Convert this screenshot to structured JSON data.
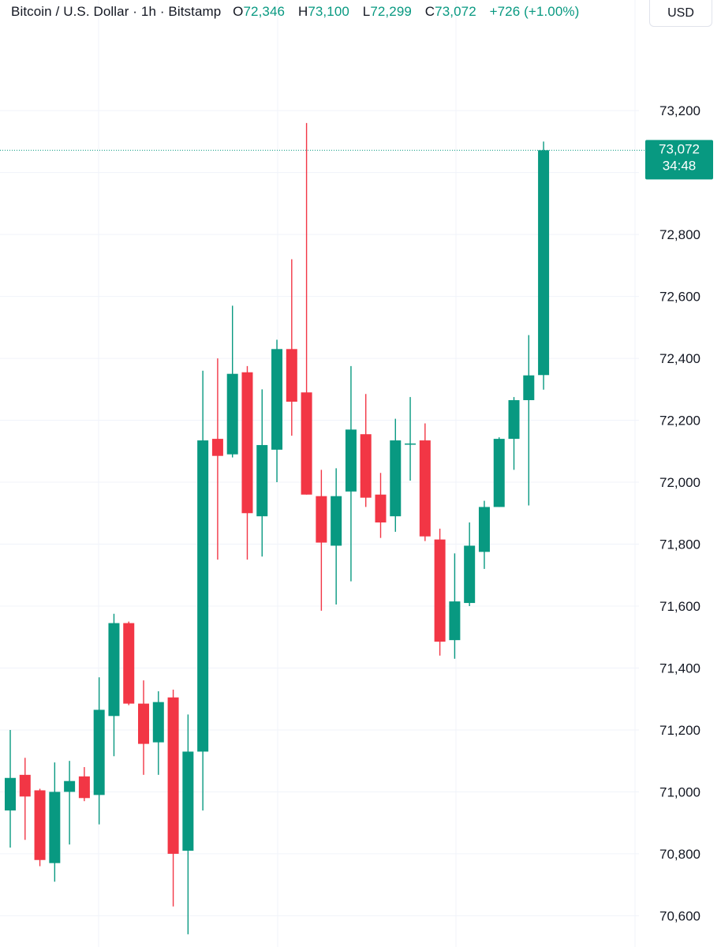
{
  "header": {
    "symbol": "Bitcoin / U.S. Dollar · 1h · Bitstamp",
    "open_label": "O",
    "open_value": "72,346",
    "high_label": "H",
    "high_value": "73,100",
    "low_label": "L",
    "low_value": "72,299",
    "close_label": "C",
    "close_value": "73,072",
    "change": "+726 (+1.00%)"
  },
  "currency_button": "USD",
  "price_tag": {
    "price": "73,072",
    "countdown": "34:48"
  },
  "colors": {
    "up": "#089981",
    "down": "#f23645",
    "grid": "#f0f3fa"
  },
  "chart_data": {
    "type": "candlestick",
    "ylim": [
      70550,
      73310
    ],
    "y_ticks": [
      {
        "value": 73200,
        "label": "73,200"
      },
      {
        "value": 72800,
        "label": "72,800"
      },
      {
        "value": 72600,
        "label": "72,600"
      },
      {
        "value": 72400,
        "label": "72,400"
      },
      {
        "value": 72200,
        "label": "72,200"
      },
      {
        "value": 72000,
        "label": "72,000"
      },
      {
        "value": 71800,
        "label": "71,800"
      },
      {
        "value": 71600,
        "label": "71,600"
      },
      {
        "value": 71400,
        "label": "71,400"
      },
      {
        "value": 71200,
        "label": "71,200"
      },
      {
        "value": 71000,
        "label": "71,000"
      },
      {
        "value": 70800,
        "label": "70,800"
      },
      {
        "value": 70600,
        "label": "70,600"
      }
    ],
    "last_price": 73072,
    "candles": [
      {
        "o": 70940,
        "h": 71200,
        "l": 70820,
        "c": 71045
      },
      {
        "o": 71055,
        "h": 71110,
        "l": 70845,
        "c": 70985
      },
      {
        "o": 71005,
        "h": 71010,
        "l": 70760,
        "c": 70780
      },
      {
        "o": 70770,
        "h": 71095,
        "l": 70710,
        "c": 71000
      },
      {
        "o": 71000,
        "h": 71100,
        "l": 70830,
        "c": 71035
      },
      {
        "o": 71050,
        "h": 71080,
        "l": 70970,
        "c": 70980
      },
      {
        "o": 70990,
        "h": 71370,
        "l": 70895,
        "c": 71265
      },
      {
        "o": 71245,
        "h": 71575,
        "l": 71115,
        "c": 71545
      },
      {
        "o": 71545,
        "h": 71550,
        "l": 71280,
        "c": 71285
      },
      {
        "o": 71285,
        "h": 71360,
        "l": 71055,
        "c": 71155
      },
      {
        "o": 71160,
        "h": 71325,
        "l": 71055,
        "c": 71290
      },
      {
        "o": 71305,
        "h": 71330,
        "l": 70630,
        "c": 70800
      },
      {
        "o": 70810,
        "h": 71250,
        "l": 70540,
        "c": 71130
      },
      {
        "o": 71130,
        "h": 72360,
        "l": 70940,
        "c": 72135
      },
      {
        "o": 72140,
        "h": 72400,
        "l": 71750,
        "c": 72085
      },
      {
        "o": 72090,
        "h": 72570,
        "l": 72080,
        "c": 72350
      },
      {
        "o": 72355,
        "h": 72375,
        "l": 71750,
        "c": 71900
      },
      {
        "o": 71890,
        "h": 72300,
        "l": 71760,
        "c": 72120
      },
      {
        "o": 72105,
        "h": 72460,
        "l": 72000,
        "c": 72430
      },
      {
        "o": 72430,
        "h": 72720,
        "l": 72150,
        "c": 72260
      },
      {
        "o": 72290,
        "h": 73160,
        "l": 71960,
        "c": 71960
      },
      {
        "o": 71955,
        "h": 72040,
        "l": 71585,
        "c": 71805
      },
      {
        "o": 71795,
        "h": 72045,
        "l": 71605,
        "c": 71955
      },
      {
        "o": 71970,
        "h": 72375,
        "l": 71680,
        "c": 72170
      },
      {
        "o": 72155,
        "h": 72285,
        "l": 71920,
        "c": 71950
      },
      {
        "o": 71960,
        "h": 72030,
        "l": 71820,
        "c": 71870
      },
      {
        "o": 71890,
        "h": 72205,
        "l": 71840,
        "c": 72135
      },
      {
        "o": 72125,
        "h": 72275,
        "l": 72005,
        "c": 72125
      },
      {
        "o": 72135,
        "h": 72190,
        "l": 71810,
        "c": 71825
      },
      {
        "o": 71815,
        "h": 71850,
        "l": 71440,
        "c": 71485
      },
      {
        "o": 71490,
        "h": 71770,
        "l": 71430,
        "c": 71615
      },
      {
        "o": 71610,
        "h": 71870,
        "l": 71600,
        "c": 71795
      },
      {
        "o": 71775,
        "h": 71940,
        "l": 71720,
        "c": 71920
      },
      {
        "o": 71920,
        "h": 72145,
        "l": 71920,
        "c": 72140
      },
      {
        "o": 72140,
        "h": 72275,
        "l": 72040,
        "c": 72265
      },
      {
        "o": 72265,
        "h": 72475,
        "l": 71925,
        "c": 72345
      },
      {
        "o": 72346,
        "h": 73100,
        "l": 72299,
        "c": 73072
      }
    ]
  }
}
